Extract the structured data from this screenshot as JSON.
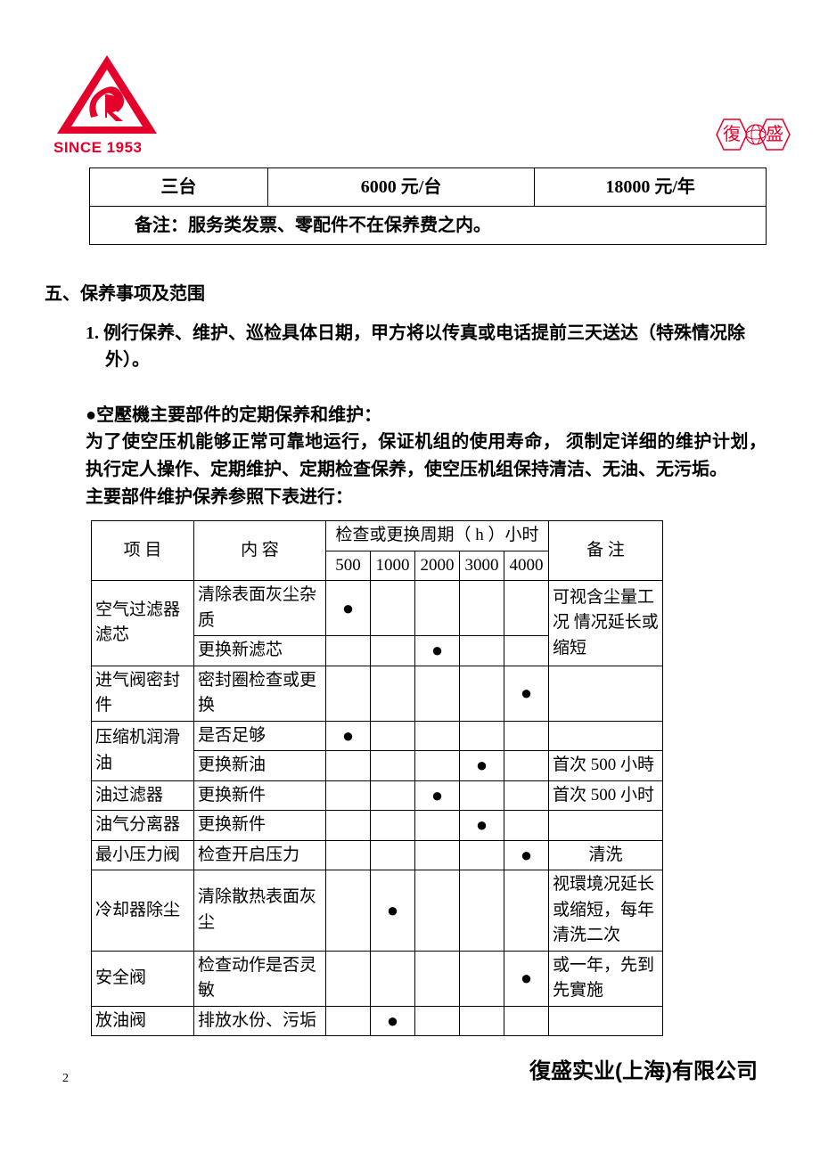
{
  "logo": {
    "since_text": "SINCE 1953"
  },
  "stamp": {
    "left_char": "復",
    "right_char": "盛"
  },
  "price_table": {
    "row": {
      "qty": "三台",
      "price_each": "6000 元/台",
      "price_year": "18000 元/年"
    },
    "note": "备注：服务类发票、零配件不在保养费之内。"
  },
  "section5": {
    "title": "五、保养事项及范围",
    "item1": "1. 例行保养、维护、巡检具体日期，甲方将以传真或电话提前三天送达（特殊情况除外）。",
    "bullet_title": "●空壓機主要部件的定期保养和维护：",
    "para1": "为了使空压机能够正常可靠地运行，保证机组的使用寿命， 须制定详细的维护计划，执行定人操作、定期维护、定期检查保养，使空压机组保持清洁、无油、无污垢。",
    "para2": "主要部件维护保养参照下表进行："
  },
  "maint_table": {
    "headers": {
      "item": "项  目",
      "content": "内  容",
      "period": "检查或更换周期（ h ）小时",
      "note": "备  注",
      "h500": "500",
      "h1000": "1000",
      "h2000": "2000",
      "h3000": "3000",
      "h4000": "4000"
    },
    "rows": [
      {
        "item": "  空气过滤器滤芯",
        "content": "  清除表面灰尘杂质",
        "marks": [
          "●",
          "",
          "",
          "",
          ""
        ],
        "note": "可视含尘量工况 情况延长或缩短",
        "rowspan_item": 2,
        "rowspan_note": 2
      },
      {
        "content": "  更换新滤芯",
        "marks": [
          "",
          "",
          "●",
          "",
          ""
        ]
      },
      {
        "item": "  进气阀密封件",
        "content": "  密封圈检查或更换",
        "marks": [
          "",
          "",
          "",
          "",
          "●"
        ],
        "note": ""
      },
      {
        "item": "  压缩机润滑油",
        "content": "  是否足够",
        "marks": [
          "●",
          "",
          "",
          "",
          ""
        ],
        "note": "",
        "rowspan_item": 2
      },
      {
        "content": "  更换新油",
        "marks": [
          "",
          "",
          "",
          "●",
          ""
        ],
        "note": "首次 500 小時"
      },
      {
        "item": "  油过滤器",
        "content": "  更换新件",
        "marks": [
          "",
          "",
          "●",
          "",
          ""
        ],
        "note": "首次 500 小时"
      },
      {
        "item": "  油气分离器",
        "content": "  更换新件",
        "marks": [
          "",
          "",
          "",
          "●",
          ""
        ],
        "note": ""
      },
      {
        "item": "  最小压力阀",
        "content": "  检查开启压力",
        "marks": [
          "",
          "",
          "",
          "",
          "●"
        ],
        "note": "  清洗",
        "note_center": true
      },
      {
        "item": "  冷却器除尘",
        "content": "  清除散热表面灰尘",
        "marks": [
          "",
          "●",
          "",
          "",
          ""
        ],
        "note": "  视環境况延长或缩短，每年清洗二次"
      },
      {
        "item": "  安全阀",
        "content": "  检查动作是否灵敏",
        "marks": [
          "",
          "",
          "",
          "",
          "●"
        ],
        "note": "  或一年，先到先實施"
      },
      {
        "item": "  放油阀",
        "content": "  排放水份、污垢",
        "marks": [
          "",
          "●",
          "",
          "",
          ""
        ],
        "note": ""
      }
    ]
  },
  "footer": {
    "page": "2",
    "company_fs": "復盛",
    "company_rest": "实业(上海)有限公司"
  },
  "colors": {
    "brand_red": "#e4002b"
  }
}
